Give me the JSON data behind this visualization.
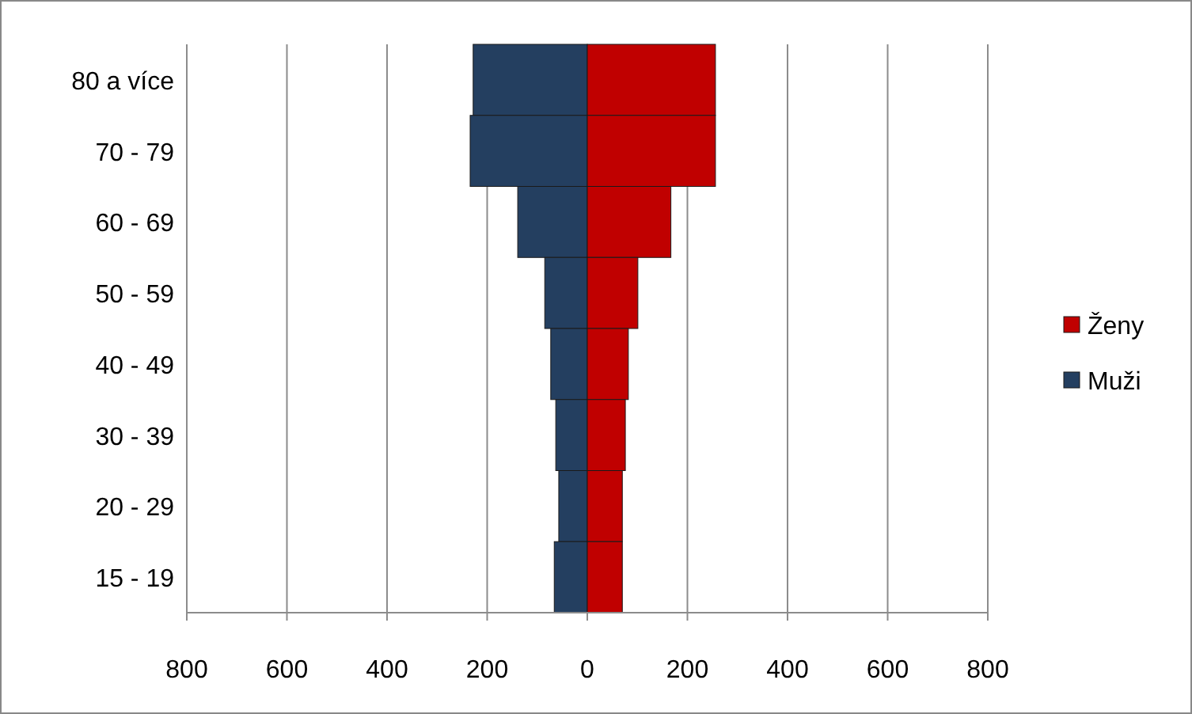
{
  "chart_data": {
    "type": "bar",
    "orientation": "horizontal",
    "stacked": true,
    "categories": [
      "80 a více",
      "70 - 79",
      "60 - 69",
      "50 - 59",
      "40 - 49",
      "30 - 39",
      "20 - 29",
      "15 - 19"
    ],
    "series": [
      {
        "name": "Muži",
        "color": "#243f60",
        "values": [
          -228,
          -234,
          -139,
          -85,
          -73,
          -63,
          -57,
          -66
        ]
      },
      {
        "name": "Ženy",
        "color": "#c00000",
        "values": [
          256,
          256,
          167,
          101,
          82,
          76,
          70,
          70
        ]
      }
    ],
    "xlim": [
      -800,
      800
    ],
    "xticks": [
      {
        "value": -800,
        "label": "800"
      },
      {
        "value": -600,
        "label": "600"
      },
      {
        "value": -400,
        "label": "400"
      },
      {
        "value": -200,
        "label": "200"
      },
      0,
      200,
      400,
      600,
      800
    ],
    "grid": "x",
    "legend": "right"
  }
}
